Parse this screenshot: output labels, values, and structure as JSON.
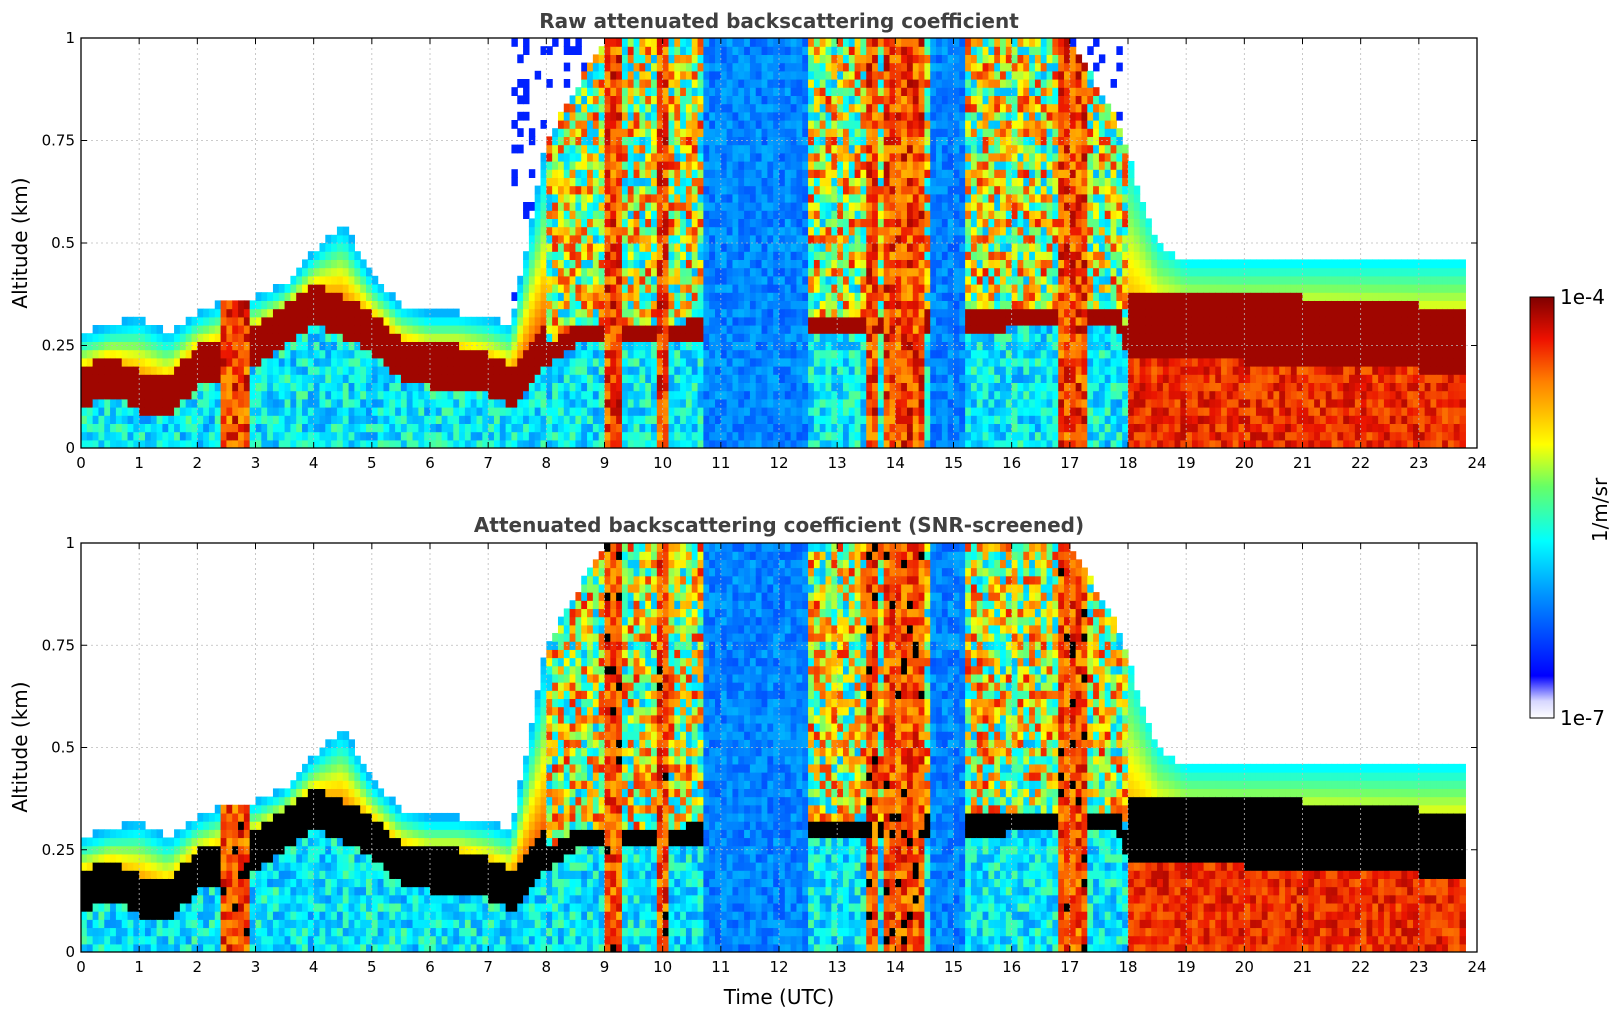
{
  "figure": {
    "xlabel": "Time (UTC)",
    "ylabel": "Altitude (km)",
    "colorbar": {
      "label": "1/m/sr",
      "max_label": "1e-4",
      "min_label": "1e-7",
      "scale": "log"
    }
  },
  "chart_data": [
    {
      "type": "heatmap",
      "title": "Raw attenuated backscattering coefficient",
      "xlabel": "",
      "ylabel": "Altitude (km)",
      "xlim": [
        0,
        24
      ],
      "ylim": [
        0,
        1
      ],
      "xticks": [
        "0",
        "1",
        "2",
        "3",
        "4",
        "5",
        "6",
        "7",
        "8",
        "9",
        "10",
        "11",
        "12",
        "13",
        "14",
        "15",
        "16",
        "17",
        "18",
        "19",
        "20",
        "21",
        "22",
        "23",
        "24"
      ],
      "yticks": [
        "0",
        "0.25",
        "0.5",
        "0.75",
        "1"
      ],
      "grid": true,
      "colorscale": "jet",
      "zlim": [
        "1e-7",
        "1e-4"
      ],
      "zunits": "1/m/sr",
      "data_end_hour": 23.8,
      "top_envelope_km": {
        "time_h": [
          0,
          0.5,
          1,
          1.5,
          2,
          2.5,
          3,
          3.5,
          4,
          4.5,
          5,
          5.5,
          6,
          6.5,
          7,
          7.4,
          8,
          9,
          10,
          11,
          12,
          13,
          14,
          15,
          16,
          17,
          17.8,
          18.5,
          19,
          20,
          21,
          22,
          23,
          23.8
        ],
        "km": [
          0.28,
          0.3,
          0.32,
          0.28,
          0.33,
          0.36,
          0.37,
          0.4,
          0.48,
          0.55,
          0.42,
          0.35,
          0.33,
          0.33,
          0.32,
          0.3,
          0.75,
          1,
          1,
          1,
          1,
          1,
          1,
          1,
          1,
          1,
          0.8,
          0.5,
          0.45,
          0.45,
          0.45,
          0.45,
          0.45,
          0.45
        ]
      },
      "strong_layer_km": {
        "time_h": [
          0,
          0.5,
          1,
          1.5,
          2,
          2.5,
          3,
          3.5,
          4,
          4.5,
          5,
          5.5,
          6,
          6.5,
          7,
          7.4,
          8,
          8.5,
          17.8,
          18,
          19,
          20,
          21,
          22,
          23,
          23.8
        ],
        "km": [
          0.15,
          0.18,
          0.14,
          0.12,
          0.2,
          0.22,
          0.25,
          0.3,
          0.35,
          0.32,
          0.28,
          0.22,
          0.2,
          0.2,
          0.18,
          0.15,
          0.25,
          0.3,
          0.35,
          0.28,
          0.28,
          0.27,
          0.27,
          0.26,
          0.25,
          0.25
        ]
      },
      "vertical_features": [
        {
          "start_h": 2.4,
          "end_h": 2.9,
          "level": "high"
        },
        {
          "start_h": 9.0,
          "end_h": 9.3,
          "level": "high"
        },
        {
          "start_h": 9.9,
          "end_h": 10.1,
          "level": "high"
        },
        {
          "start_h": 10.7,
          "end_h": 12.5,
          "level": "low"
        },
        {
          "start_h": 13.5,
          "end_h": 13.7,
          "level": "high"
        },
        {
          "start_h": 13.8,
          "end_h": 14.5,
          "level": "high"
        },
        {
          "start_h": 14.6,
          "end_h": 15.2,
          "level": "low"
        },
        {
          "start_h": 16.8,
          "end_h": 17.3,
          "level": "high"
        },
        {
          "start_h": 18.0,
          "end_h": 23.8,
          "level": "high-surface"
        }
      ]
    },
    {
      "type": "heatmap",
      "title": "Attenuated backscattering coefficient (SNR-screened)",
      "xlabel": "Time (UTC)",
      "ylabel": "Altitude (km)",
      "xlim": [
        0,
        24
      ],
      "ylim": [
        0,
        1
      ],
      "xticks": [
        "0",
        "1",
        "2",
        "3",
        "4",
        "5",
        "6",
        "7",
        "8",
        "9",
        "10",
        "11",
        "12",
        "13",
        "14",
        "15",
        "16",
        "17",
        "18",
        "19",
        "20",
        "21",
        "22",
        "23",
        "24"
      ],
      "yticks": [
        "0",
        "0.25",
        "0.5",
        "0.75",
        "1"
      ],
      "grid": true,
      "colorscale": "jet",
      "zlim": [
        "1e-7",
        "1e-4"
      ],
      "zunits": "1/m/sr",
      "data_end_hour": 23.8,
      "saturated_color": "#000000"
    }
  ]
}
